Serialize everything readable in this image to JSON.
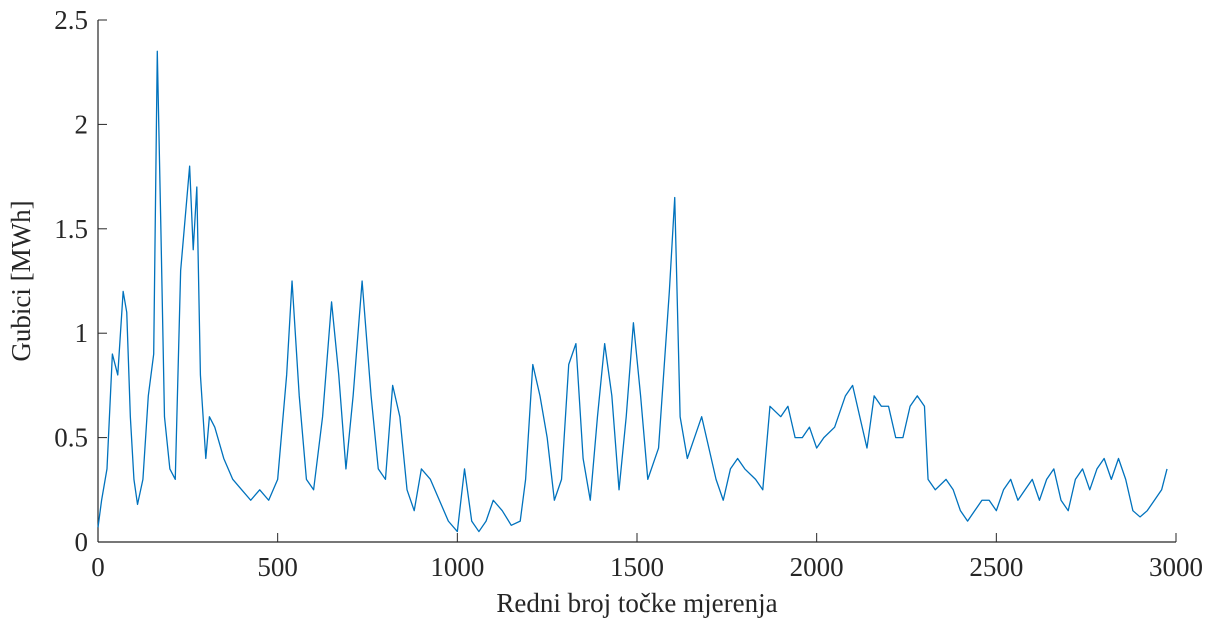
{
  "chart_data": {
    "type": "line",
    "x_label": "Redni broj točke mjerenja",
    "y_label": "Gubici [MWh]",
    "xlim": [
      0,
      3000
    ],
    "xticks": [
      0,
      500,
      1000,
      1500,
      2000,
      2500,
      3000
    ],
    "ylim": [
      0,
      2.5
    ],
    "yticks": [
      0,
      0.5,
      1,
      1.5,
      2,
      2.5
    ],
    "series": [
      {
        "color": "#0072bd",
        "x": [
          0,
          10,
          25,
          40,
          55,
          70,
          80,
          90,
          100,
          110,
          125,
          140,
          155,
          165,
          175,
          185,
          200,
          215,
          230,
          245,
          255,
          265,
          275,
          285,
          300,
          310,
          325,
          350,
          375,
          400,
          425,
          450,
          475,
          500,
          525,
          540,
          560,
          580,
          600,
          625,
          650,
          670,
          690,
          710,
          735,
          760,
          780,
          800,
          820,
          840,
          860,
          880,
          900,
          925,
          950,
          975,
          1000,
          1020,
          1040,
          1060,
          1080,
          1100,
          1125,
          1150,
          1175,
          1190,
          1210,
          1230,
          1250,
          1270,
          1290,
          1310,
          1330,
          1350,
          1370,
          1390,
          1410,
          1430,
          1450,
          1470,
          1490,
          1510,
          1530,
          1560,
          1590,
          1605,
          1620,
          1640,
          1660,
          1680,
          1700,
          1720,
          1740,
          1760,
          1780,
          1800,
          1830,
          1850,
          1870,
          1900,
          1920,
          1940,
          1960,
          1980,
          2000,
          2020,
          2050,
          2080,
          2100,
          2120,
          2140,
          2160,
          2180,
          2200,
          2220,
          2240,
          2260,
          2280,
          2300,
          2310,
          2330,
          2360,
          2380,
          2400,
          2420,
          2440,
          2460,
          2480,
          2500,
          2520,
          2540,
          2560,
          2580,
          2600,
          2620,
          2640,
          2660,
          2680,
          2700,
          2720,
          2740,
          2760,
          2780,
          2800,
          2820,
          2840,
          2860,
          2880,
          2900,
          2920,
          2940,
          2960,
          2975
        ],
        "values": [
          0.07,
          0.2,
          0.35,
          0.9,
          0.8,
          1.2,
          1.1,
          0.6,
          0.3,
          0.18,
          0.3,
          0.7,
          0.9,
          2.35,
          1.5,
          0.6,
          0.35,
          0.3,
          1.3,
          1.6,
          1.8,
          1.4,
          1.7,
          0.8,
          0.4,
          0.6,
          0.55,
          0.4,
          0.3,
          0.25,
          0.2,
          0.25,
          0.2,
          0.3,
          0.8,
          1.25,
          0.7,
          0.3,
          0.25,
          0.6,
          1.15,
          0.8,
          0.35,
          0.7,
          1.25,
          0.7,
          0.35,
          0.3,
          0.75,
          0.6,
          0.25,
          0.15,
          0.35,
          0.3,
          0.2,
          0.1,
          0.05,
          0.35,
          0.1,
          0.05,
          0.1,
          0.2,
          0.15,
          0.08,
          0.1,
          0.3,
          0.85,
          0.7,
          0.5,
          0.2,
          0.3,
          0.85,
          0.95,
          0.4,
          0.2,
          0.6,
          0.95,
          0.7,
          0.25,
          0.6,
          1.05,
          0.7,
          0.3,
          0.45,
          1.2,
          1.65,
          0.6,
          0.4,
          0.5,
          0.6,
          0.45,
          0.3,
          0.2,
          0.35,
          0.4,
          0.35,
          0.3,
          0.25,
          0.65,
          0.6,
          0.65,
          0.5,
          0.5,
          0.55,
          0.45,
          0.5,
          0.55,
          0.7,
          0.75,
          0.6,
          0.45,
          0.7,
          0.65,
          0.65,
          0.5,
          0.5,
          0.65,
          0.7,
          0.65,
          0.3,
          0.25,
          0.3,
          0.25,
          0.15,
          0.1,
          0.15,
          0.2,
          0.2,
          0.15,
          0.25,
          0.3,
          0.2,
          0.25,
          0.3,
          0.2,
          0.3,
          0.35,
          0.2,
          0.15,
          0.3,
          0.35,
          0.25,
          0.35,
          0.4,
          0.3,
          0.4,
          0.3,
          0.15,
          0.12,
          0.15,
          0.2,
          0.25,
          0.35
        ]
      }
    ]
  }
}
